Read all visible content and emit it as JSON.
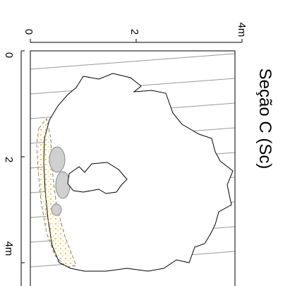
{
  "title": "Seção C (Sc)",
  "scale_top": {
    "labels": [
      "0",
      "2",
      "4m"
    ]
  },
  "scale_left": {
    "labels": [
      "0",
      "2",
      "4m"
    ]
  }
}
